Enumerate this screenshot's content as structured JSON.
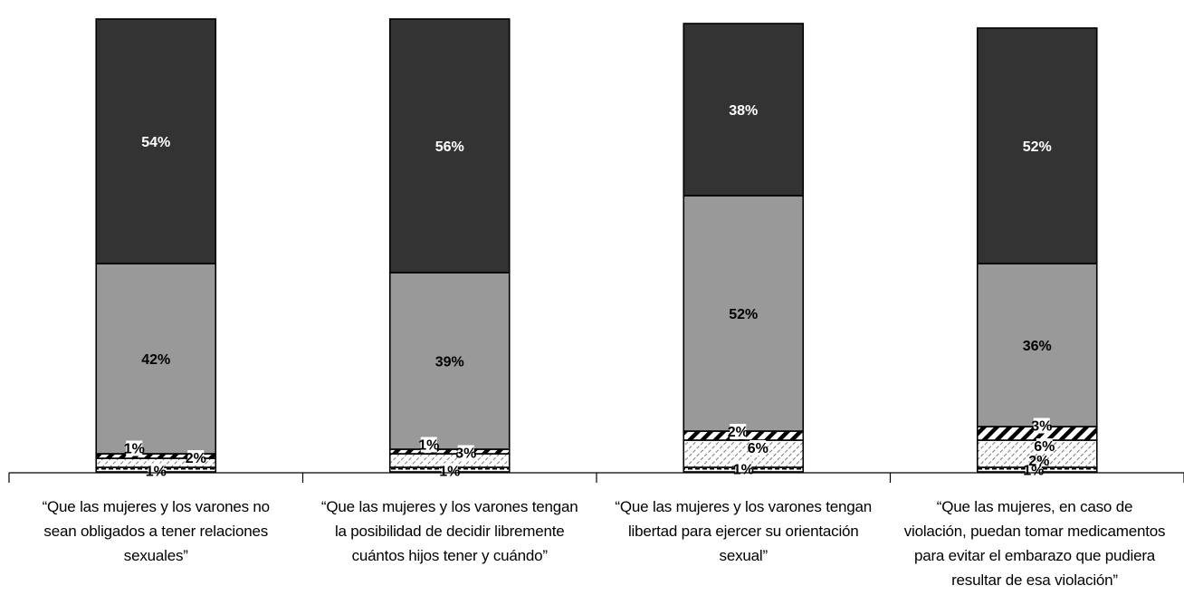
{
  "chart_data": {
    "type": "bar",
    "stacked": true,
    "categories": [
      "“Que las mujeres y los varones no\nsean obligados a tener relaciones\nsexuales”",
      "“Que las mujeres y los varones tengan\nla posibilidad de decidir libremente\ncuántos hijos tener y cuándo”",
      "“Que las mujeres y los varones tengan\nlibertad para ejercer su orientación\nsexual”",
      "“Que las mujeres, en caso de\nviolación, puedan tomar medicamentos\npara evitar el embarazo que pudiera\nresultar de esa violación”"
    ],
    "series": [
      {
        "values": [
          1,
          1,
          1,
          1
        ],
        "fill": "hatch-dash",
        "color": "#000000"
      },
      {
        "values": [
          2,
          3,
          6,
          6
        ],
        "fill": "hatch-light",
        "color": "#888888"
      },
      {
        "values": [
          1,
          1,
          2,
          3
        ],
        "fill": "hatch-bold",
        "color": "#000000"
      },
      {
        "values": [
          42,
          39,
          52,
          36
        ],
        "fill": "solid",
        "color": "#999999"
      },
      {
        "values": [
          54,
          56,
          38,
          52
        ],
        "fill": "solid",
        "color": "#333333"
      }
    ],
    "data_labels": [
      [
        "1%",
        "2%",
        "1%",
        "42%",
        "54%"
      ],
      [
        "1%",
        "3%",
        "1%",
        "39%",
        "56%"
      ],
      [
        "1%",
        "6%",
        "2%",
        "52%",
        "38%"
      ],
      [
        "1%",
        "6%",
        "3%",
        "36%",
        "52%"
      ],
      [
        "2%"
      ]
    ],
    "ylim": [
      0,
      100
    ],
    "grid": false,
    "legend": "none"
  }
}
